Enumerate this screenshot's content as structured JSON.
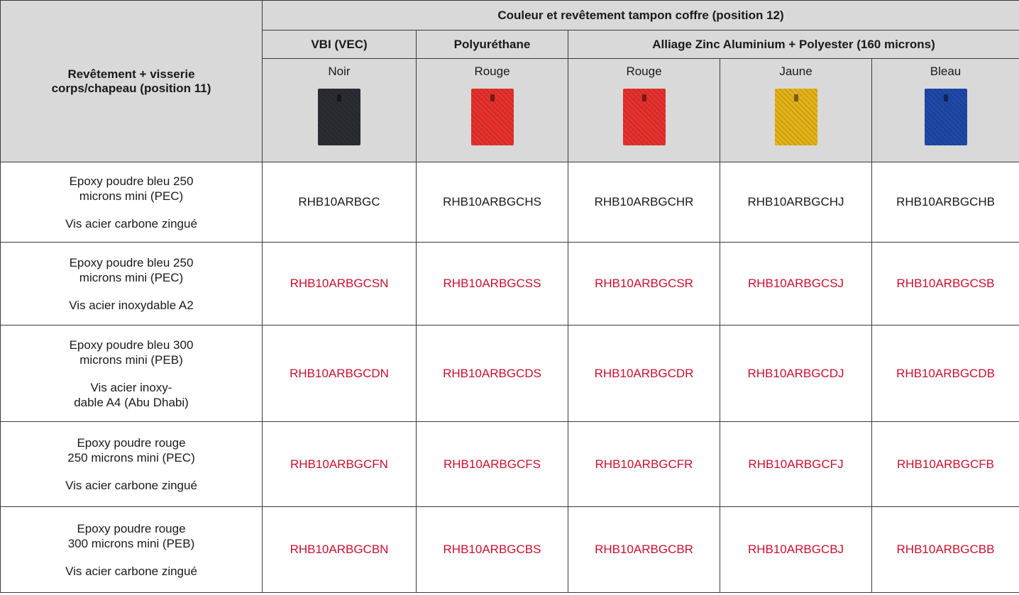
{
  "table": {
    "header": {
      "corner": "Revêtement + visserie corps/chapeau (position 11)",
      "group": "Couleur et revêtement tampon coffre (position 12)",
      "subgroups": [
        "VBI (VEC)",
        "Polyuréthane",
        "Alliage Zinc Aluminium + Polyester (160 microns)"
      ],
      "colors": [
        "Noir",
        "Rouge",
        "Rouge",
        "Jaune",
        "Bleau"
      ]
    },
    "rows": [
      {
        "coating": [
          "Epoxy poudre bleu 250",
          "microns mini (PEC)"
        ],
        "screws": [
          "Vis acier carbone zingué"
        ],
        "codes": [
          "RHB10ARBGC",
          "RHB10ARBGCHS",
          "RHB10ARBGCHR",
          "RHB10ARBGCHJ",
          "RHB10ARBGCHB"
        ]
      },
      {
        "coating": [
          "Epoxy poudre bleu 250",
          "microns mini (PEC)"
        ],
        "screws": [
          "Vis acier inoxydable A2"
        ],
        "codes": [
          "RHB10ARBGCSN",
          "RHB10ARBGCSS",
          "RHB10ARBGCSR",
          "RHB10ARBGCSJ",
          "RHB10ARBGCSB"
        ]
      },
      {
        "coating": [
          "Epoxy poudre bleu 300",
          "microns mini (PEB)"
        ],
        "screws": [
          "Vis acier inoxy-",
          "dable A4 (Abu Dhabi)"
        ],
        "codes": [
          "RHB10ARBGCDN",
          "RHB10ARBGCDS",
          "RHB10ARBGCDR",
          "RHB10ARBGCDJ",
          "RHB10ARBGCDB"
        ]
      },
      {
        "coating": [
          "Epoxy poudre rouge",
          "250 microns mini (PEC)"
        ],
        "screws": [
          "Vis acier carbone zingué"
        ],
        "codes": [
          "RHB10ARBGCFN",
          "RHB10ARBGCFS",
          "RHB10ARBGCFR",
          "RHB10ARBGCFJ",
          "RHB10ARBGCFB"
        ]
      },
      {
        "coating": [
          "Epoxy poudre rouge",
          "300 microns mini (PEB)"
        ],
        "screws": [
          "Vis acier carbone zingué"
        ],
        "codes": [
          "RHB10ARBGCBN",
          "RHB10ARBGCBS",
          "RHB10ARBGCBR",
          "RHB10ARBGCBJ",
          "RHB10ARBGCBB"
        ]
      }
    ]
  }
}
